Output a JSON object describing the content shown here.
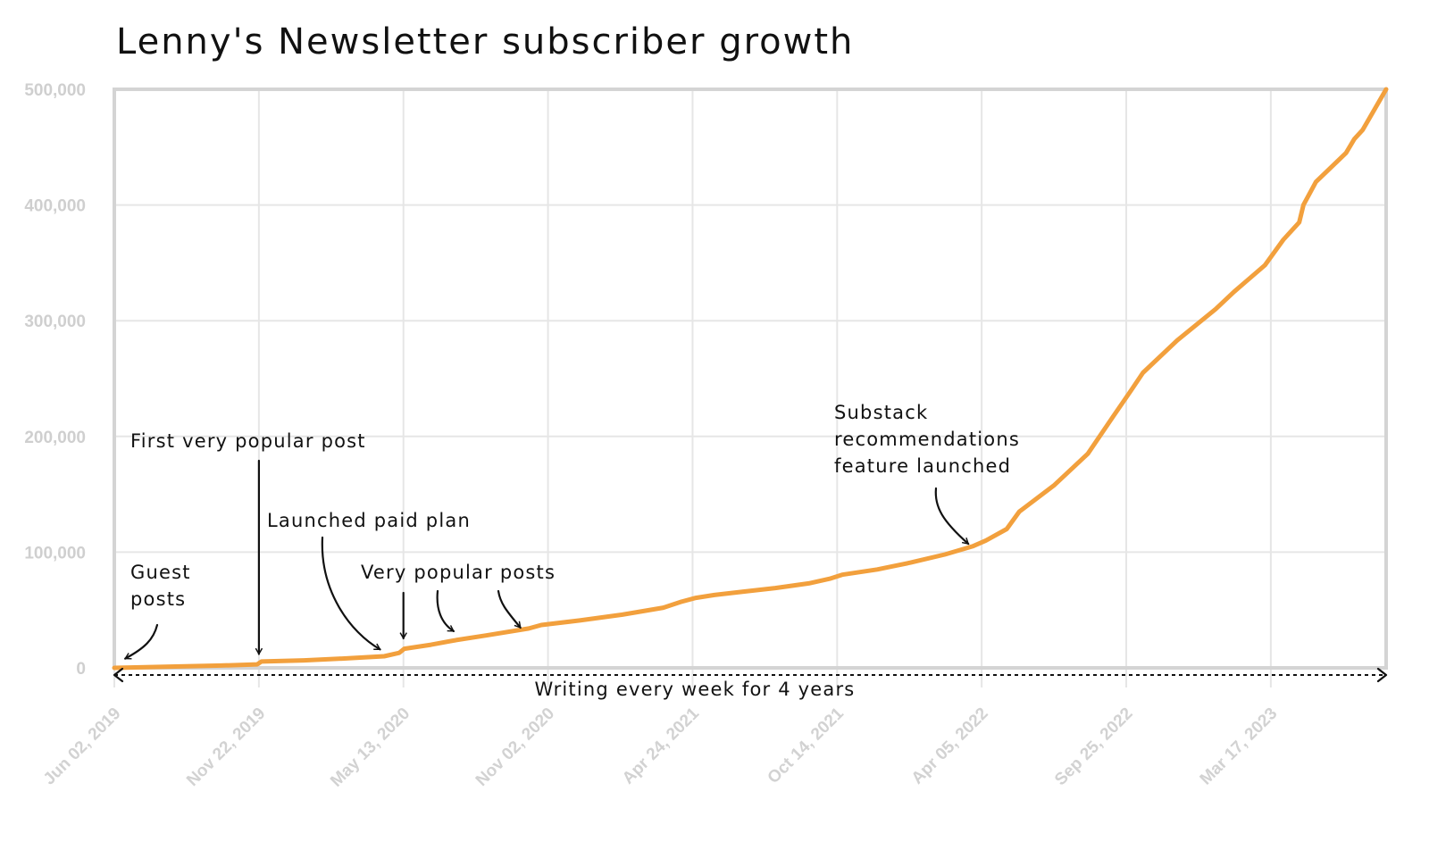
{
  "chart_data": {
    "type": "line",
    "title": "Lenny's Newsletter subscriber growth",
    "xlabel": "",
    "ylabel": "",
    "x_ticks": [
      "Jun 02, 2019",
      "Nov 22, 2019",
      "May 13, 2020",
      "Nov 02, 2020",
      "Apr 24, 2021",
      "Oct 14, 2021",
      "Apr 05, 2022",
      "Sep 25, 2022",
      "Mar 17, 2023"
    ],
    "y_ticks": [
      "0",
      "100,000",
      "200,000",
      "300,000",
      "400,000",
      "500,000"
    ],
    "ylim": [
      0,
      500000
    ],
    "xlim": [
      "2019-06-02",
      "2023-08-02"
    ],
    "grid": true,
    "series": [
      {
        "color": "#f2a03d",
        "points": [
          [
            "2019-06-02",
            0
          ],
          [
            "2019-07-03",
            500
          ],
          [
            "2019-08-20",
            1200
          ],
          [
            "2019-10-08",
            2000
          ],
          [
            "2019-11-20",
            3000
          ],
          [
            "2019-11-25",
            5500
          ],
          [
            "2020-01-15",
            6500
          ],
          [
            "2020-03-01",
            8000
          ],
          [
            "2020-04-20",
            10000
          ],
          [
            "2020-05-08",
            13000
          ],
          [
            "2020-05-14",
            16500
          ],
          [
            "2020-06-15",
            20000
          ],
          [
            "2020-07-15",
            24000
          ],
          [
            "2020-08-20",
            28000
          ],
          [
            "2020-10-10",
            34000
          ],
          [
            "2020-10-25",
            37000
          ],
          [
            "2020-12-10",
            41000
          ],
          [
            "2021-01-30",
            46000
          ],
          [
            "2021-03-20",
            52000
          ],
          [
            "2021-04-10",
            57000
          ],
          [
            "2021-04-28",
            60500
          ],
          [
            "2021-05-20",
            63000
          ],
          [
            "2021-06-25",
            66000
          ],
          [
            "2021-08-01",
            69000
          ],
          [
            "2021-09-10",
            73000
          ],
          [
            "2021-10-05",
            77000
          ],
          [
            "2021-10-20",
            80500
          ],
          [
            "2021-12-01",
            85000
          ],
          [
            "2022-01-10",
            91000
          ],
          [
            "2022-02-20",
            98000
          ],
          [
            "2022-03-25",
            105000
          ],
          [
            "2022-04-10",
            110000
          ],
          [
            "2022-05-05",
            120000
          ],
          [
            "2022-05-20",
            135000
          ],
          [
            "2022-07-01",
            158000
          ],
          [
            "2022-08-10",
            185000
          ],
          [
            "2022-09-10",
            218000
          ],
          [
            "2022-10-01",
            240000
          ],
          [
            "2022-10-15",
            255000
          ],
          [
            "2022-11-25",
            283000
          ],
          [
            "2023-01-10",
            310000
          ],
          [
            "2023-02-01",
            325000
          ],
          [
            "2023-03-10",
            348000
          ],
          [
            "2023-04-01",
            370000
          ],
          [
            "2023-04-20",
            385000
          ],
          [
            "2023-04-25",
            400000
          ],
          [
            "2023-05-10",
            420000
          ],
          [
            "2023-06-15",
            445000
          ],
          [
            "2023-06-25",
            457000
          ],
          [
            "2023-07-05",
            465000
          ],
          [
            "2023-08-02",
            500000
          ]
        ]
      }
    ],
    "annotations": [
      {
        "lines": [
          "Guest",
          "posts"
        ],
        "date": "2019-06-15",
        "value": 8000
      },
      {
        "lines": [
          "First very popular post"
        ],
        "date": "2019-11-22",
        "value": 12000
      },
      {
        "lines": [
          "Launched paid plan"
        ],
        "date": "2020-04-15",
        "value": 16000
      },
      {
        "lines": [
          "Very popular posts"
        ],
        "dates": [
          "2020-05-13",
          "2020-07-12",
          "2020-09-30"
        ],
        "value": 24000
      },
      {
        "lines": [
          "Substack",
          "recommendations",
          "feature launched"
        ],
        "date": "2022-03-20",
        "value": 118000
      }
    ],
    "span_annotation": {
      "label": "Writing every week for 4 years",
      "from": "2019-06-02",
      "to": "2023-08-02"
    }
  }
}
